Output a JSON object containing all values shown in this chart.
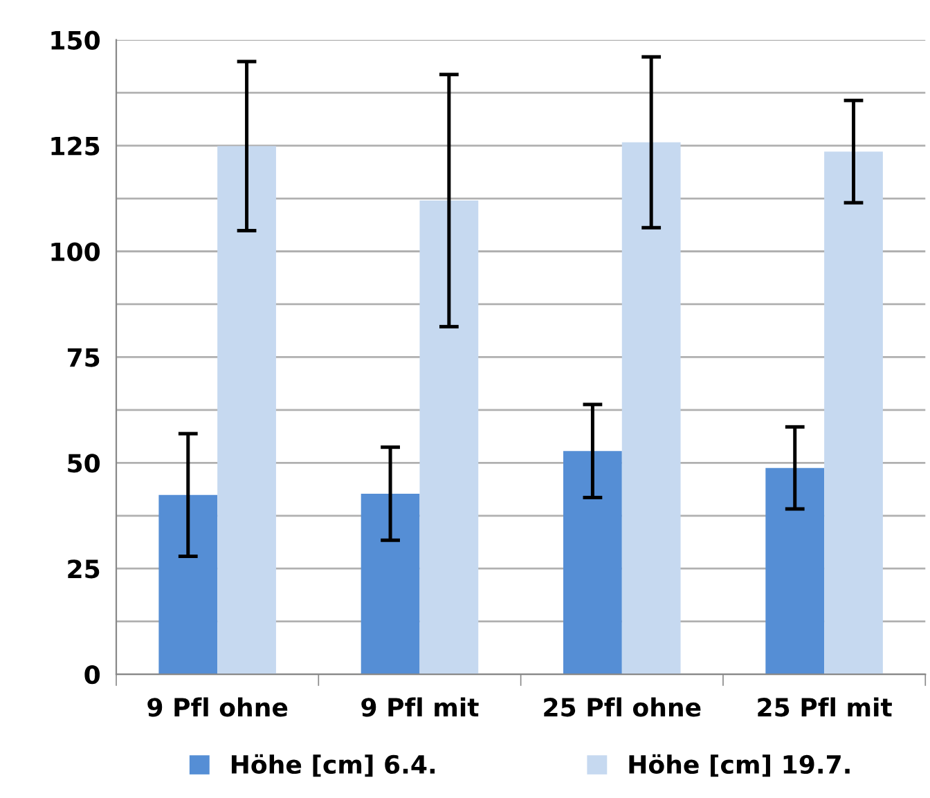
{
  "chart_data": {
    "type": "bar",
    "categories": [
      "9 Pfl ohne",
      "9 Pfl mit",
      "25 Pfl ohne",
      "25 Pfl mit"
    ],
    "series": [
      {
        "name": "Höhe [cm] 6.4.",
        "color": "#558ed5",
        "values": [
          42.4,
          42.7,
          52.8,
          48.8
        ],
        "errors": [
          14.5,
          11,
          11,
          9.7
        ]
      },
      {
        "name": "Höhe [cm] 19.7.",
        "color": "#c6d9f0",
        "values": [
          124.9,
          112.0,
          125.8,
          123.6
        ],
        "errors": [
          20,
          29.8,
          20.2,
          12.1
        ]
      }
    ],
    "ylim": [
      0,
      150
    ],
    "yticks": [
      0,
      {
        "value": 12.5,
        "label": null
      },
      25,
      {
        "value": 37.5,
        "label": null
      },
      50,
      {
        "value": 62.5,
        "label": null
      },
      75,
      {
        "value": 87.5,
        "label": null
      },
      100,
      {
        "value": 112.5,
        "label": null
      },
      125,
      {
        "value": 137.5,
        "label": null
      },
      150
    ],
    "grid": "y",
    "legend": "bottom"
  }
}
